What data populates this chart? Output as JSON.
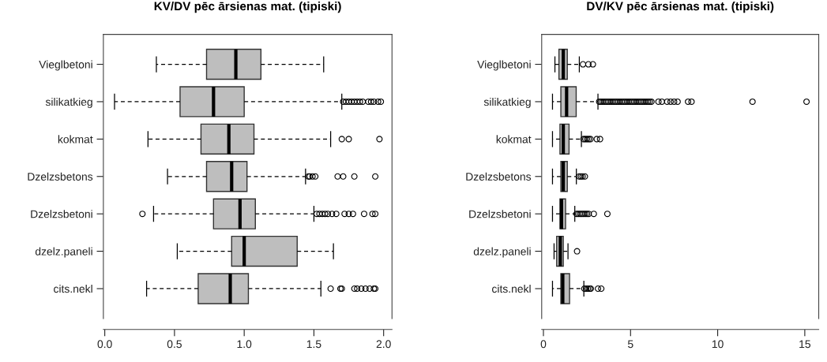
{
  "chart_data": [
    {
      "type": "box",
      "title": "KV/DV pēc ārsienas mat. (tipiski)",
      "orientation": "horizontal",
      "categories": [
        "Vieglbetoni",
        "silikatkieg",
        "kokmat",
        "Dzelzsbetons",
        "Dzelzsbetoni",
        "dzelz.paneli",
        "cits.nekl"
      ],
      "color": "#bebebe",
      "grid": false,
      "xlim": [
        -0.01,
        2.06
      ],
      "xticks": [
        {
          "value": 0,
          "label": "0.0"
        },
        {
          "value": 0.5,
          "label": "0.5"
        },
        {
          "value": 1,
          "label": "1.0"
        },
        {
          "value": 1.5,
          "label": "1.5"
        },
        {
          "value": 2,
          "label": "2.0"
        }
      ],
      "boxes": [
        {
          "low": 0.37,
          "q1": 0.73,
          "median": 0.94,
          "q3": 1.12,
          "high": 1.57
        },
        {
          "low": 0.07,
          "q1": 0.54,
          "median": 0.78,
          "q3": 1.0,
          "high": 1.7,
          "outliers": [
            1.71,
            1.73,
            1.75,
            1.77,
            1.79,
            1.81,
            1.83,
            1.85,
            1.89,
            1.91,
            1.93,
            1.96,
            1.98
          ]
        },
        {
          "low": 0.31,
          "q1": 0.69,
          "median": 0.89,
          "q3": 1.07,
          "high": 1.62,
          "outliers": [
            1.7,
            1.75,
            1.97
          ]
        },
        {
          "low": 0.45,
          "q1": 0.73,
          "median": 0.91,
          "q3": 1.02,
          "high": 1.44,
          "outliers": [
            1.46,
            1.47,
            1.49,
            1.51,
            1.67,
            1.71,
            1.79,
            1.94
          ]
        },
        {
          "low": 0.35,
          "q1": 0.78,
          "median": 0.97,
          "q3": 1.08,
          "high": 1.5,
          "outliers": [
            0.27,
            1.52,
            1.54,
            1.56,
            1.58,
            1.6,
            1.63,
            1.66,
            1.72,
            1.75,
            1.78,
            1.86,
            1.92,
            1.94
          ]
        },
        {
          "low": 0.52,
          "q1": 0.91,
          "median": 1.0,
          "q3": 1.38,
          "high": 1.64
        },
        {
          "low": 0.3,
          "q1": 0.67,
          "median": 0.9,
          "q3": 1.03,
          "high": 1.55,
          "outliers": [
            1.62,
            1.69,
            1.7,
            1.79,
            1.81,
            1.84,
            1.87,
            1.9,
            1.93,
            1.94
          ]
        }
      ]
    },
    {
      "type": "box",
      "title": "DV/KV pēc ārsienas mat. (tipiski)",
      "orientation": "horizontal",
      "categories": [
        "Vieglbetoni",
        "silikatkieg",
        "kokmat",
        "Dzelzsbetons",
        "Dzelzsbetoni",
        "dzelz.paneli",
        "cits.nekl"
      ],
      "color": "#bebebe",
      "grid": false,
      "xlim": [
        -0.1,
        15.8
      ],
      "xticks": [
        0,
        5,
        10,
        15
      ],
      "boxes": [
        {
          "low": 0.66,
          "q1": 0.89,
          "median": 1.14,
          "q3": 1.37,
          "high": 2.06,
          "outliers": [
            2.27,
            2.58,
            2.84
          ]
        },
        {
          "low": 0.52,
          "q1": 1.0,
          "median": 1.33,
          "q3": 1.88,
          "high": 3.13,
          "outliers": [
            3.2,
            3.3,
            3.4,
            3.5,
            3.6,
            3.7,
            3.8,
            3.9,
            4.0,
            4.1,
            4.2,
            4.3,
            4.4,
            4.5,
            4.6,
            4.7,
            4.8,
            4.9,
            5.0,
            5.1,
            5.2,
            5.3,
            5.4,
            5.5,
            5.6,
            5.7,
            5.8,
            5.9,
            6.0,
            6.1,
            6.2,
            6.6,
            6.8,
            7.1,
            7.3,
            7.5,
            7.7,
            8.3,
            8.5,
            12.0,
            15.1
          ]
        },
        {
          "low": 0.52,
          "q1": 0.95,
          "median": 1.14,
          "q3": 1.47,
          "high": 2.18,
          "outliers": [
            2.3,
            2.4,
            2.5,
            2.6,
            2.7,
            3.06,
            3.25
          ]
        },
        {
          "low": 0.52,
          "q1": 1.0,
          "median": 1.14,
          "q3": 1.37,
          "high": 1.89,
          "outliers": [
            2.05,
            2.15,
            2.25,
            2.38
          ]
        },
        {
          "low": 0.52,
          "q1": 0.95,
          "median": 1.04,
          "q3": 1.27,
          "high": 1.8,
          "outliers": [
            1.9,
            2.0,
            2.1,
            2.2,
            2.3,
            2.4,
            2.5,
            2.6,
            2.89,
            3.67
          ]
        },
        {
          "low": 0.61,
          "q1": 0.76,
          "median": 0.97,
          "q3": 1.14,
          "high": 1.41,
          "outliers": [
            1.93
          ]
        },
        {
          "low": 0.52,
          "q1": 1.0,
          "median": 1.11,
          "q3": 1.5,
          "high": 2.32,
          "outliers": [
            2.35,
            2.45,
            2.55,
            2.65,
            2.72,
            3.13,
            3.32
          ]
        }
      ]
    }
  ]
}
